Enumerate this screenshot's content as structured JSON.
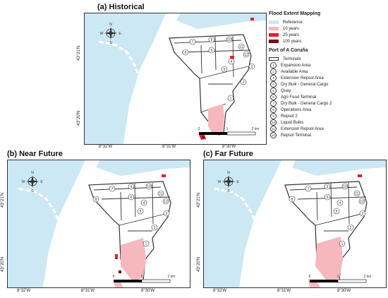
{
  "panels": {
    "a": {
      "title": "(a) Historical",
      "x_ticks": [
        "8°32'W",
        "8°31'W",
        "8°30'W"
      ],
      "y_ticks": [
        "43°21'N",
        "43°20'N"
      ]
    },
    "b": {
      "title": "(b) Near Future",
      "x_ticks": [
        "8°32'W",
        "8°31'W",
        "8°30'W"
      ],
      "y_ticks": [
        "43°21'N",
        "43°20'N"
      ]
    },
    "c": {
      "title": "(c) Far Future",
      "x_ticks": [
        "8°32'W",
        "8°31'W",
        "8°30'W"
      ],
      "y_ticks": [
        "43°21'N",
        "43°20'N"
      ]
    }
  },
  "scale_bar": {
    "labels": [
      "0",
      "1",
      "2 km"
    ]
  },
  "compass": {
    "n": "N",
    "s": "S",
    "e": "E",
    "w": "W"
  },
  "legend": {
    "flood_header": "Flood Extent Mapping",
    "flood_items": [
      {
        "label": "Reference",
        "color": "#cde8f5"
      },
      {
        "label": "10 years",
        "color": "#f6b8bd"
      },
      {
        "label": "25 years",
        "color": "#e0202a"
      },
      {
        "label": "100 years",
        "color": "#7a0d12"
      }
    ],
    "port_header": "Port of A Coruña",
    "terminals_label": "Terminals",
    "areas": [
      {
        "num": "1",
        "label": "Expansion Area"
      },
      {
        "num": "2",
        "label": "Available Area"
      },
      {
        "num": "3",
        "label": "Extension Repsol Area"
      },
      {
        "num": "4",
        "label": "Dry Bulk - General Cargo"
      },
      {
        "num": "5",
        "label": "Quay"
      },
      {
        "num": "6",
        "label": "Agri Food Terminal"
      },
      {
        "num": "7",
        "label": "Dry Bulk - General Cargo 2"
      },
      {
        "num": "8",
        "label": "Operations Area"
      },
      {
        "num": "9",
        "label": "Repsol 2"
      },
      {
        "num": "10",
        "label": "Liquid Bulks"
      },
      {
        "num": "11",
        "label": "Extension Repsol Area"
      },
      {
        "num": "12",
        "label": "Repsol Terminal"
      }
    ]
  },
  "colors": {
    "sea": "#cde8f5",
    "land": "#ffffff",
    "flood10": "#f6b8bd",
    "flood25": "#e0202a",
    "flood100": "#7a0d12"
  }
}
